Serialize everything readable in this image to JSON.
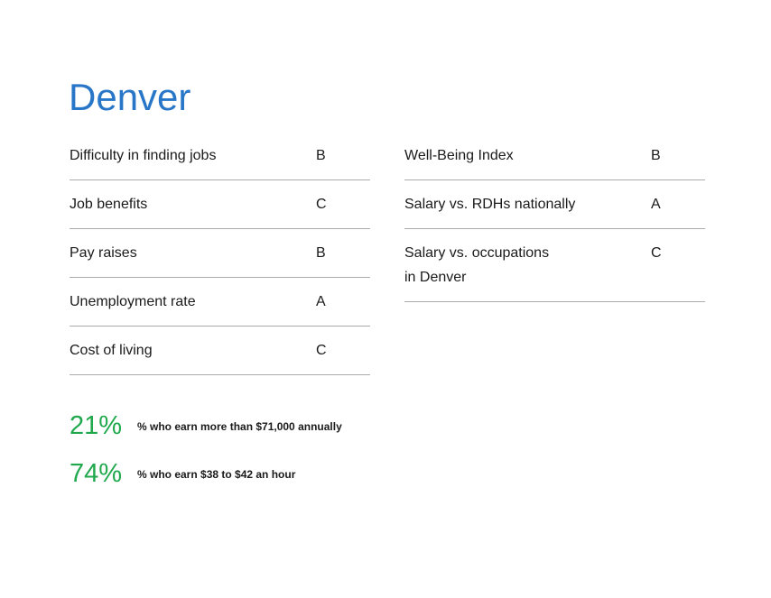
{
  "page": {
    "title": "Denver"
  },
  "colors": {
    "accent_blue": "#2876C8",
    "accent_green": "#1FA84C",
    "divider": "#ABABAB",
    "text_dark": "#1A1A1A"
  },
  "left_table": {
    "rows": [
      {
        "label": "Difficulty in finding jobs",
        "grade": "B"
      },
      {
        "label": "Job benefits",
        "grade": "C"
      },
      {
        "label": "Pay raises",
        "grade": "B"
      },
      {
        "label": "Unemployment rate",
        "grade": "A"
      },
      {
        "label": "Cost of living",
        "grade": "C"
      }
    ]
  },
  "right_table": {
    "rows": [
      {
        "label": "Well-Being Index",
        "grade": "B"
      },
      {
        "label": "Salary vs. RDHs nationally",
        "grade": "A"
      },
      {
        "label": "Salary vs. occupations\nin Denver",
        "grade": "C"
      }
    ]
  },
  "stats": [
    {
      "value": "21%",
      "caption": "% who earn more than $71,000 annually"
    },
    {
      "value": "74%",
      "caption": "% who earn $38 to $42 an hour"
    }
  ]
}
